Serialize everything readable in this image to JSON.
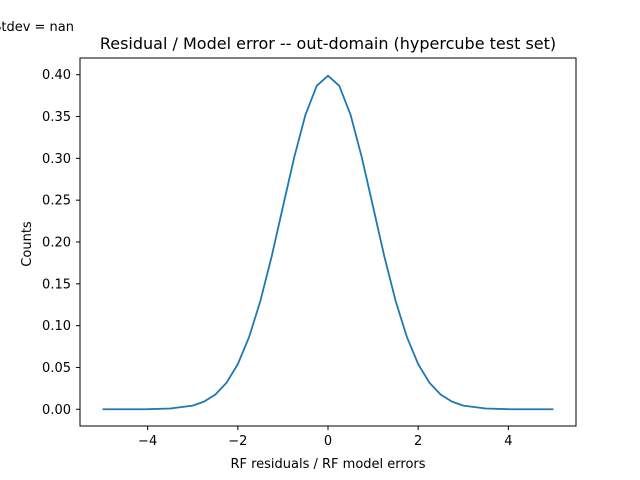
{
  "chart_data": {
    "type": "line",
    "title": "Residual / Model error -- out-domain (hypercube test set)",
    "annotation": "Stdev = nan",
    "xlabel": "RF residuals / RF model errors",
    "ylabel": "Counts",
    "xlim": [
      -5.5,
      5.5
    ],
    "ylim": [
      -0.02,
      0.42
    ],
    "x_ticks": [
      -4,
      -2,
      0,
      2,
      4
    ],
    "x_tick_labels": [
      "−4",
      "−2",
      "0",
      "2",
      "4"
    ],
    "y_ticks": [
      0.0,
      0.05,
      0.1,
      0.15,
      0.2,
      0.25,
      0.3,
      0.35,
      0.4
    ],
    "y_tick_labels": [
      "0.00",
      "0.05",
      "0.10",
      "0.15",
      "0.20",
      "0.25",
      "0.30",
      "0.35",
      "0.40"
    ],
    "grid": false,
    "series": [
      {
        "color": "#1f77b4",
        "x": [
          -5.0,
          -4.5,
          -4.0,
          -3.5,
          -3.0,
          -2.75,
          -2.5,
          -2.25,
          -2.0,
          -1.75,
          -1.5,
          -1.25,
          -1.0,
          -0.75,
          -0.5,
          -0.25,
          0.0,
          0.25,
          0.5,
          0.75,
          1.0,
          1.25,
          1.5,
          1.75,
          2.0,
          2.25,
          2.5,
          2.75,
          3.0,
          3.5,
          4.0,
          4.5,
          5.0
        ],
        "y": [
          0.0,
          0.0,
          0.0001,
          0.0009,
          0.0044,
          0.0091,
          0.0175,
          0.0317,
          0.054,
          0.0863,
          0.1295,
          0.1826,
          0.242,
          0.3011,
          0.3521,
          0.3867,
          0.3989,
          0.3867,
          0.3521,
          0.3011,
          0.242,
          0.1826,
          0.1295,
          0.0863,
          0.054,
          0.0317,
          0.0175,
          0.0091,
          0.0044,
          0.0009,
          0.0001,
          0.0,
          0.0
        ]
      }
    ]
  }
}
